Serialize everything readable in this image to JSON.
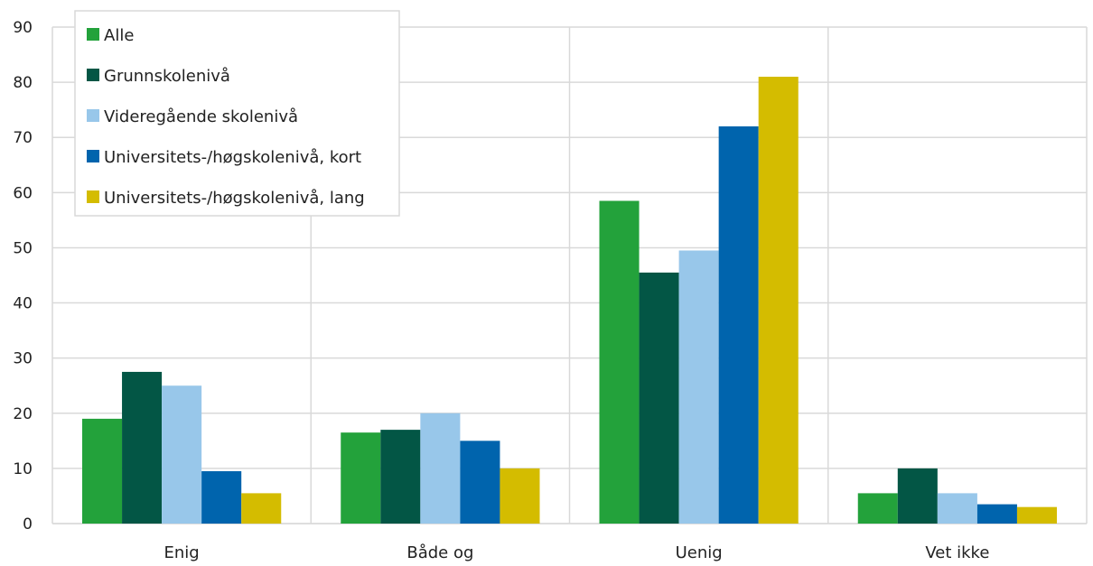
{
  "chart_data": {
    "type": "bar",
    "title": "",
    "xlabel": "",
    "ylabel": "",
    "ylim": [
      0,
      90
    ],
    "yticks": [
      0,
      10,
      20,
      30,
      40,
      50,
      60,
      70,
      80,
      90
    ],
    "grid": true,
    "legend_position": "top-left",
    "categories": [
      "Enig",
      "Både og",
      "Uenig",
      "Vet ikke"
    ],
    "series": [
      {
        "name": "Alle",
        "color": "#23a23b",
        "values": [
          19,
          16.5,
          58.5,
          5.5
        ]
      },
      {
        "name": "Grunnskolenivå",
        "color": "#035645",
        "values": [
          27.5,
          17,
          45.5,
          10
        ]
      },
      {
        "name": "Videregående skolenivå",
        "color": "#98c7ea",
        "values": [
          25,
          20,
          49.5,
          5.5
        ]
      },
      {
        "name": "Universitets-/høgskolenivå, kort",
        "color": "#0064ad",
        "values": [
          9.5,
          15,
          72,
          3.5
        ]
      },
      {
        "name": "Universitets-/høgskolenivå, lang",
        "color": "#d4bc00",
        "values": [
          5.5,
          10,
          81,
          3
        ]
      }
    ]
  }
}
